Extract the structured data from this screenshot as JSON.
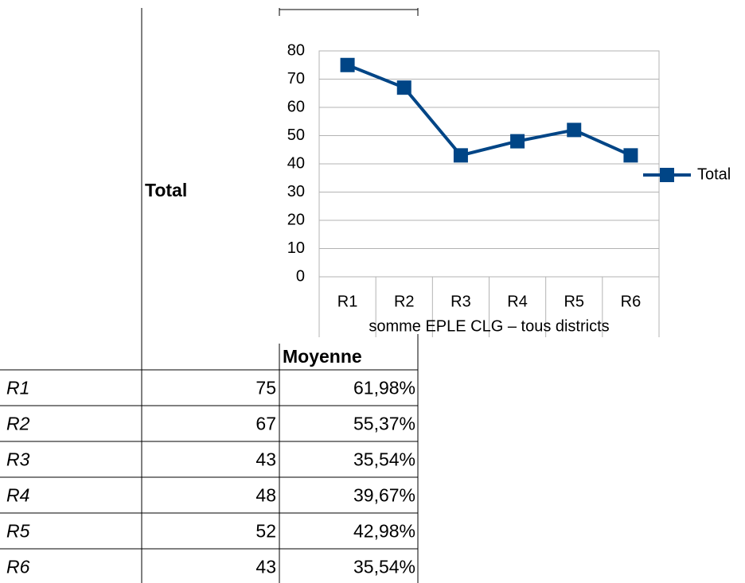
{
  "table": {
    "header": {
      "total": "Total",
      "moyenne": "Moyenne"
    },
    "rows": [
      [
        "R1",
        75,
        "61,98%"
      ],
      [
        "R2",
        67,
        "55,37%"
      ],
      [
        "R3",
        43,
        "35,54%"
      ],
      [
        "R4",
        48,
        "39,67%"
      ],
      [
        "R5",
        52,
        "42,98%"
      ],
      [
        "R6",
        43,
        "35,54%"
      ]
    ]
  },
  "chart_data": {
    "type": "line",
    "categories": [
      "R1",
      "R2",
      "R3",
      "R4",
      "R5",
      "R6"
    ],
    "series": [
      {
        "name": "Total",
        "color": "#004586",
        "values": [
          75,
          67,
          43,
          48,
          52,
          43
        ]
      }
    ],
    "xlabel": "somme EPLE CLG – tous districts",
    "ylim": [
      0,
      80
    ],
    "yticks": [
      0,
      10,
      20,
      30,
      40,
      50,
      60,
      70,
      80
    ],
    "grid": true,
    "legend": "right"
  }
}
